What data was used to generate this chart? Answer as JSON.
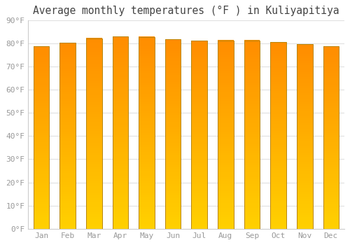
{
  "title": "Average monthly temperatures (°F ) in Kuliyapitiya",
  "months": [
    "Jan",
    "Feb",
    "Mar",
    "Apr",
    "May",
    "Jun",
    "Jul",
    "Aug",
    "Sep",
    "Oct",
    "Nov",
    "Dec"
  ],
  "values": [
    78.8,
    80.1,
    82.2,
    83.1,
    82.8,
    81.7,
    81.1,
    81.3,
    81.3,
    80.6,
    79.5,
    78.8
  ],
  "bar_color_top": "#FF8C00",
  "bar_color_bottom": "#FFD000",
  "bar_edge_color": "#B8860B",
  "background_color": "#FFFFFF",
  "grid_color": "#E0E0E0",
  "text_color": "#999999",
  "ylim": [
    0,
    90
  ],
  "yticks": [
    0,
    10,
    20,
    30,
    40,
    50,
    60,
    70,
    80,
    90
  ],
  "title_fontsize": 10.5,
  "tick_fontsize": 8.0,
  "bar_width": 0.6
}
